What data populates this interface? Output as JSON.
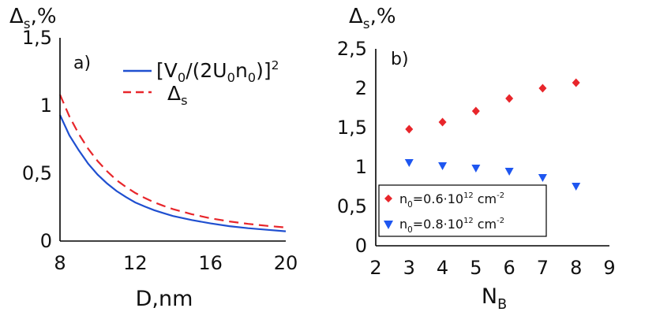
{
  "colors": {
    "red": "#e8262b",
    "blue": "#1f4fd0",
    "blue_marker": "#1e56f0"
  },
  "chart_data": [
    {
      "panel": "a)",
      "type": "line",
      "ylabel": "Δs,%",
      "xlabel": "D,nm",
      "xlim": [
        8,
        20
      ],
      "ylim": [
        0,
        1.5
      ],
      "xticks": [
        8,
        12,
        16,
        20
      ],
      "yticks": [
        0,
        0.5,
        1,
        1.5
      ],
      "xtick_labels": [
        "8",
        "12",
        "16",
        "20"
      ],
      "ytick_labels": [
        "0",
        "0,5",
        "1",
        "1,5"
      ],
      "legend_position": "top-right",
      "series": [
        {
          "name": "[V0/(2U0n0)]2",
          "style": "solid",
          "color": "#1f4fd0",
          "x": [
            8,
            8.5,
            9,
            9.5,
            10,
            10.5,
            11,
            11.5,
            12,
            12.5,
            13,
            13.5,
            14,
            15,
            16,
            17,
            18,
            19,
            20
          ],
          "y": [
            0.93,
            0.78,
            0.67,
            0.57,
            0.49,
            0.425,
            0.37,
            0.325,
            0.285,
            0.255,
            0.228,
            0.206,
            0.185,
            0.155,
            0.13,
            0.11,
            0.095,
            0.083,
            0.072
          ]
        },
        {
          "name": "Δs",
          "style": "dashed",
          "color": "#e8262b",
          "x": [
            8,
            8.5,
            9,
            9.5,
            10,
            10.5,
            11,
            11.5,
            12,
            12.5,
            13,
            13.5,
            14,
            15,
            16,
            17,
            18,
            19,
            20
          ],
          "y": [
            1.08,
            0.92,
            0.79,
            0.68,
            0.59,
            0.515,
            0.45,
            0.4,
            0.355,
            0.318,
            0.286,
            0.26,
            0.236,
            0.198,
            0.168,
            0.145,
            0.127,
            0.112,
            0.1
          ]
        }
      ]
    },
    {
      "panel": "b)",
      "type": "scatter",
      "ylabel": "Δs,%",
      "xlabel": "NB",
      "xlim": [
        2,
        9
      ],
      "ylim": [
        0,
        2.5
      ],
      "xticks": [
        2,
        3,
        4,
        5,
        6,
        7,
        8,
        9
      ],
      "yticks": [
        0,
        0.5,
        1,
        1.5,
        2,
        2.5
      ],
      "xtick_labels": [
        "2",
        "3",
        "4",
        "5",
        "6",
        "7",
        "8",
        "9"
      ],
      "ytick_labels": [
        "0",
        "0,5",
        "1",
        "1,5",
        "2",
        "2,5"
      ],
      "legend_position": "bottom-left",
      "series": [
        {
          "name": "n0=0.6·1012 cm-2",
          "marker": "diamond",
          "color": "#e8262b",
          "x": [
            3,
            4,
            5,
            6,
            7,
            8
          ],
          "y": [
            1.48,
            1.57,
            1.71,
            1.87,
            2.0,
            2.07
          ]
        },
        {
          "name": "n0=0.8·1012 cm-2",
          "marker": "triangle-down",
          "color": "#1e56f0",
          "x": [
            3,
            4,
            5,
            6,
            7,
            8
          ],
          "y": [
            1.05,
            1.01,
            0.98,
            0.94,
            0.86,
            0.75
          ]
        }
      ]
    }
  ]
}
